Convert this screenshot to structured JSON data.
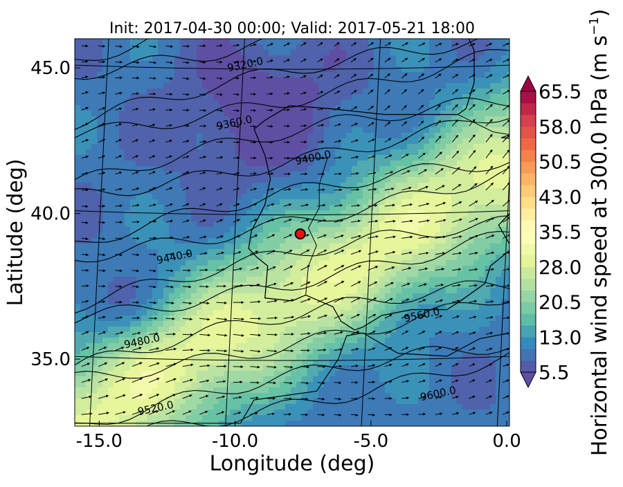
{
  "chart_data": {
    "type": "heatmap",
    "title": "Init: 2017-04-30 00:00; Valid: 2017-05-21 18:00",
    "xlabel": "Longitude (deg)",
    "ylabel": "Latitude (deg)",
    "xlim": [
      -15.9,
      0.1
    ],
    "ylim": [
      32.7,
      46.0
    ],
    "x_ticks": [
      "-15.0",
      "-10.0",
      "-5.0",
      "0.0"
    ],
    "x_tick_values": [
      -15.0,
      -10.0,
      -5.0,
      0.0
    ],
    "y_ticks": [
      "45.0",
      "40.0",
      "35.0"
    ],
    "y_tick_values": [
      45.0,
      40.0,
      35.0
    ],
    "colorbar": {
      "label": "Horizontal wind speed at 300.0 hPa (m s",
      "label_sup": "−1",
      "label_close": ")",
      "ticks": [
        "65.5",
        "58.0",
        "50.5",
        "43.0",
        "35.5",
        "28.0",
        "20.5",
        "13.0",
        "5.5"
      ],
      "tick_values": [
        65.5,
        58.0,
        50.5,
        43.0,
        35.5,
        28.0,
        20.5,
        13.0,
        5.5
      ],
      "range": [
        5.5,
        65.5
      ],
      "extend": "both",
      "colormap": "Spectral_r"
    },
    "contour_labels": [
      {
        "text": "9320.0",
        "lon": -9.6,
        "lat": 45.0
      },
      {
        "text": "9360.0",
        "lon": -10.0,
        "lat": 43.0
      },
      {
        "text": "9400.0",
        "lon": -7.1,
        "lat": 41.8
      },
      {
        "text": "9440.0",
        "lon": -12.2,
        "lat": 38.4
      },
      {
        "text": "9480.0",
        "lon": -13.4,
        "lat": 35.5
      },
      {
        "text": "9520.0",
        "lon": -12.9,
        "lat": 33.2
      },
      {
        "text": "9560.0",
        "lon": -3.1,
        "lat": 36.4
      },
      {
        "text": "9600.0",
        "lon": -2.5,
        "lat": 33.7
      }
    ],
    "marker": {
      "lon": -7.6,
      "lat": 39.3,
      "color": "#ee1111"
    },
    "wind_field_regions": [
      {
        "description_level": "low",
        "speed": 8,
        "area": "north Atlantic west of Portugal"
      },
      {
        "description_level": "high",
        "speed": 30,
        "area": "southwest-northeast jet band across Iberia"
      }
    ],
    "wind_direction": "westerly to south-westerly"
  }
}
